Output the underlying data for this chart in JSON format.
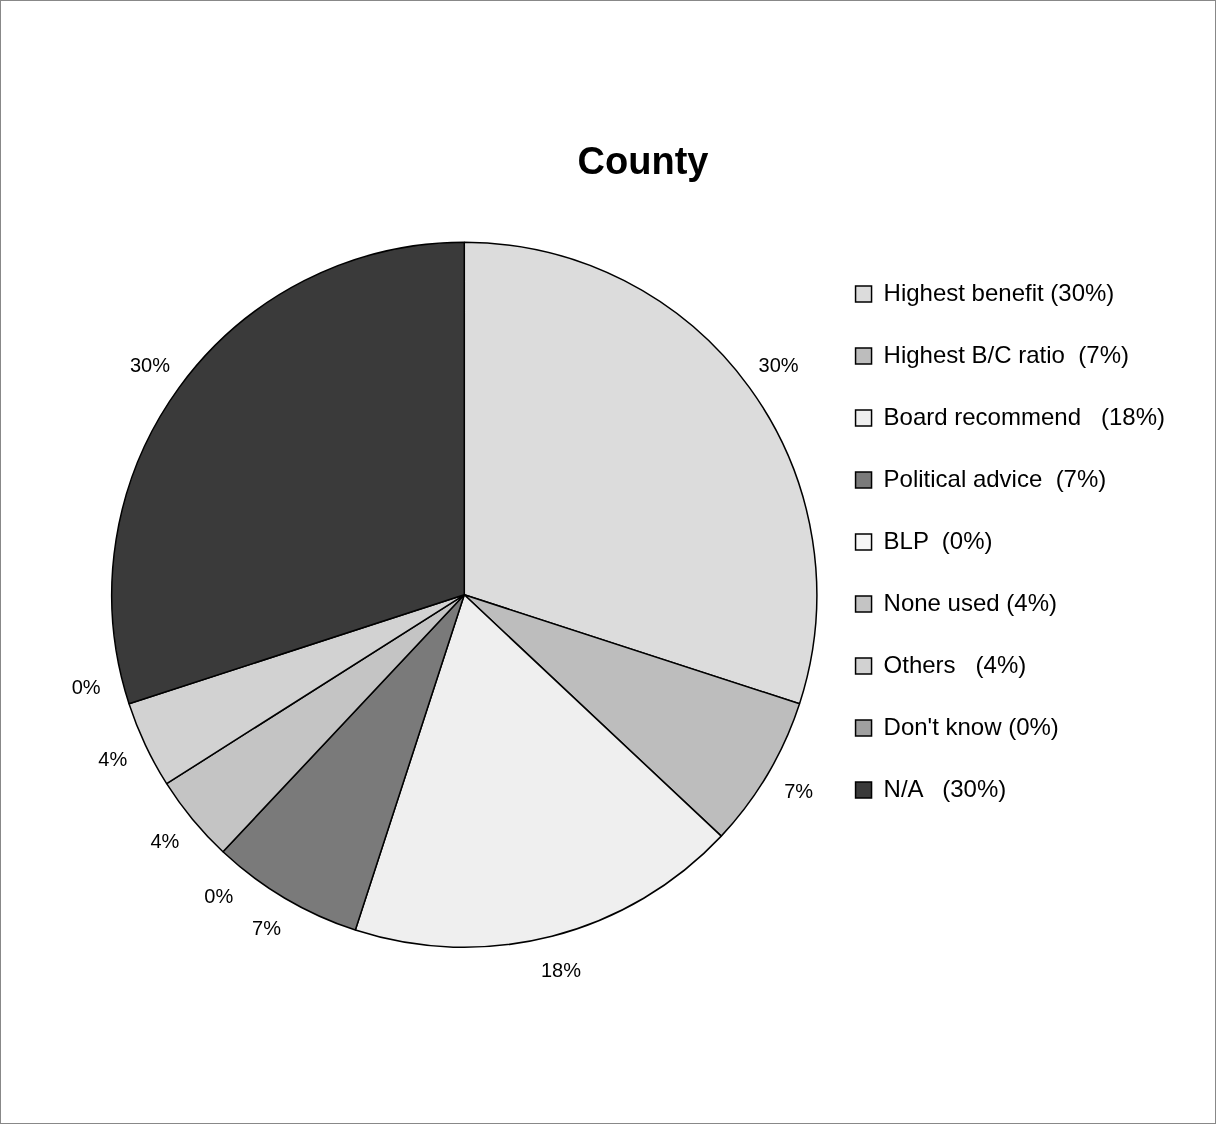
{
  "chart_data": {
    "type": "pie",
    "title": "County",
    "categories": [
      "Highest benefit (30%)",
      "Highest B/C ratio  (7%)",
      "Board recommend   (18%)",
      "Political advice  (7%)",
      "BLP  (0%)",
      "None used (4%)",
      "Others   (4%)",
      "Don't know (0%)",
      "N/A   (30%)"
    ],
    "values": [
      30,
      7,
      18,
      7,
      0,
      4,
      4,
      0,
      30
    ],
    "colors": [
      "#dcdcdc",
      "#bdbdbd",
      "#efefef",
      "#7a7a7a",
      "#f7f7f7",
      "#c4c4c4",
      "#d2d2d2",
      "#a0a0a0",
      "#3a3a3a"
    ],
    "value_labels": [
      "30%",
      "7%",
      "18%",
      "7%",
      "0%",
      "4%",
      "4%",
      "0%",
      "30%"
    ],
    "legend": "right"
  }
}
